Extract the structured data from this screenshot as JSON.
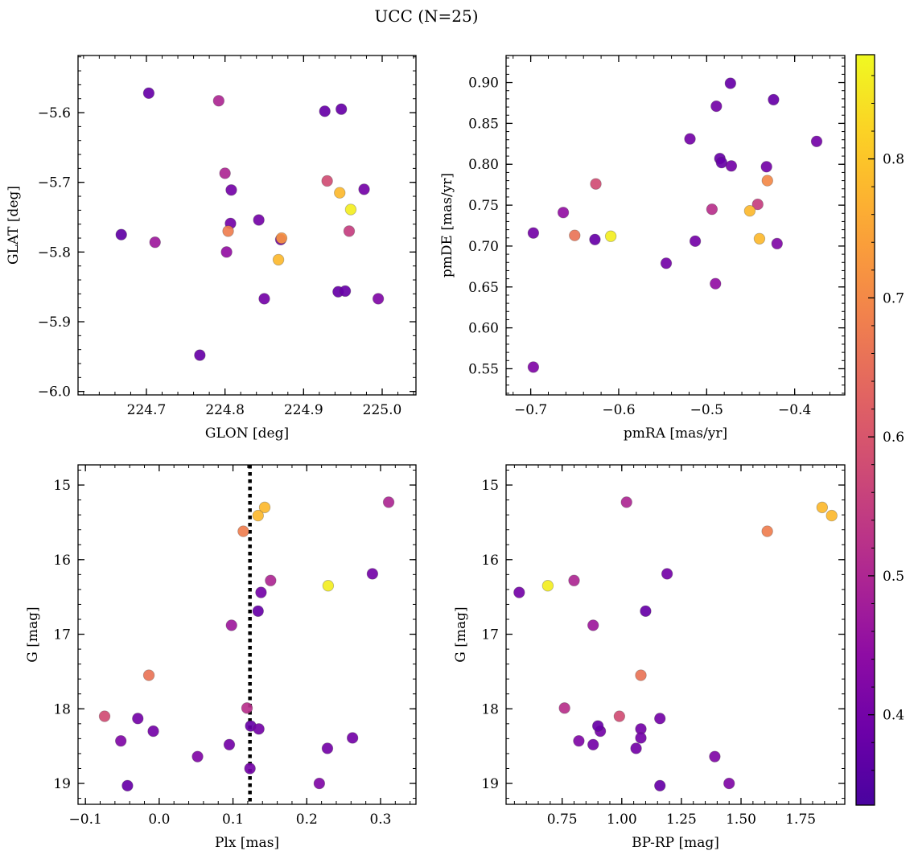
{
  "title": "UCC (N=25)",
  "colorbar": {
    "cmap": "plasma",
    "vmin": 0.335,
    "vmax": 0.875,
    "ticks": [
      0.4,
      0.5,
      0.6,
      0.7,
      0.8
    ]
  },
  "chart_data": [
    {
      "type": "scatter",
      "xlabel": "GLON [deg]",
      "ylabel": "GLAT [deg]",
      "xlim": [
        224.613,
        225.043
      ],
      "ylim": [
        -6.005,
        -5.518
      ],
      "invert_y": false,
      "xticks": [
        224.7,
        224.8,
        224.9,
        225.0
      ],
      "xticklabels": [
        "224.7",
        "224.8",
        "224.9",
        "225.0"
      ],
      "yticks": [
        -5.6,
        -5.7,
        -5.8,
        -5.9,
        -6.0
      ],
      "yticklabels": [
        "−5.6",
        "−5.7",
        "−5.8",
        "−5.9",
        "−6.0"
      ],
      "points": [
        {
          "x": 224.703,
          "y": -5.572,
          "c": 0.38
        },
        {
          "x": 224.792,
          "y": -5.583,
          "c": 0.5
        },
        {
          "x": 224.927,
          "y": -5.598,
          "c": 0.38
        },
        {
          "x": 224.948,
          "y": -5.595,
          "c": 0.38
        },
        {
          "x": 224.8,
          "y": -5.687,
          "c": 0.5
        },
        {
          "x": 224.808,
          "y": -5.711,
          "c": 0.4
        },
        {
          "x": 224.93,
          "y": -5.698,
          "c": 0.58
        },
        {
          "x": 224.946,
          "y": -5.715,
          "c": 0.78
        },
        {
          "x": 224.977,
          "y": -5.71,
          "c": 0.4
        },
        {
          "x": 224.96,
          "y": -5.739,
          "c": 0.86
        },
        {
          "x": 224.807,
          "y": -5.759,
          "c": 0.4
        },
        {
          "x": 224.843,
          "y": -5.754,
          "c": 0.4
        },
        {
          "x": 224.668,
          "y": -5.775,
          "c": 0.37
        },
        {
          "x": 224.711,
          "y": -5.786,
          "c": 0.47
        },
        {
          "x": 224.804,
          "y": -5.77,
          "c": 0.68
        },
        {
          "x": 224.871,
          "y": -5.782,
          "c": 0.4
        },
        {
          "x": 224.872,
          "y": -5.78,
          "c": 0.72
        },
        {
          "x": 224.958,
          "y": -5.77,
          "c": 0.55
        },
        {
          "x": 224.802,
          "y": -5.8,
          "c": 0.45
        },
        {
          "x": 224.868,
          "y": -5.811,
          "c": 0.78
        },
        {
          "x": 224.85,
          "y": -5.867,
          "c": 0.4
        },
        {
          "x": 224.944,
          "y": -5.857,
          "c": 0.38
        },
        {
          "x": 224.953,
          "y": -5.856,
          "c": 0.38
        },
        {
          "x": 224.995,
          "y": -5.867,
          "c": 0.42
        },
        {
          "x": 224.768,
          "y": -5.948,
          "c": 0.38
        }
      ]
    },
    {
      "type": "scatter",
      "xlabel": "pmRA [mas/yr]",
      "ylabel": "pmDE [mas/yr]",
      "xlim": [
        -0.728,
        -0.343
      ],
      "ylim": [
        0.518,
        0.933
      ],
      "invert_y": false,
      "xticks": [
        -0.7,
        -0.6,
        -0.5,
        -0.4
      ],
      "xticklabels": [
        "−0.7",
        "−0.6",
        "−0.5",
        "−0.4"
      ],
      "yticks": [
        0.55,
        0.6,
        0.65,
        0.7,
        0.75,
        0.8,
        0.85,
        0.9
      ],
      "yticklabels": [
        "0.55",
        "0.60",
        "0.65",
        "0.70",
        "0.75",
        "0.80",
        "0.85",
        "0.90"
      ],
      "points": [
        {
          "x": -0.473,
          "y": 0.899,
          "c": 0.38
        },
        {
          "x": -0.424,
          "y": 0.879,
          "c": 0.38
        },
        {
          "x": -0.489,
          "y": 0.871,
          "c": 0.4
        },
        {
          "x": -0.519,
          "y": 0.831,
          "c": 0.4
        },
        {
          "x": -0.375,
          "y": 0.828,
          "c": 0.4
        },
        {
          "x": -0.485,
          "y": 0.807,
          "c": 0.38
        },
        {
          "x": -0.483,
          "y": 0.802,
          "c": 0.38
        },
        {
          "x": -0.472,
          "y": 0.798,
          "c": 0.4
        },
        {
          "x": -0.432,
          "y": 0.797,
          "c": 0.4
        },
        {
          "x": -0.431,
          "y": 0.78,
          "c": 0.7
        },
        {
          "x": -0.626,
          "y": 0.776,
          "c": 0.58
        },
        {
          "x": -0.442,
          "y": 0.751,
          "c": 0.55
        },
        {
          "x": -0.494,
          "y": 0.745,
          "c": 0.52
        },
        {
          "x": -0.451,
          "y": 0.743,
          "c": 0.78
        },
        {
          "x": -0.663,
          "y": 0.741,
          "c": 0.45
        },
        {
          "x": -0.697,
          "y": 0.716,
          "c": 0.4
        },
        {
          "x": -0.65,
          "y": 0.713,
          "c": 0.66
        },
        {
          "x": -0.609,
          "y": 0.712,
          "c": 0.86
        },
        {
          "x": -0.44,
          "y": 0.709,
          "c": 0.78
        },
        {
          "x": -0.627,
          "y": 0.708,
          "c": 0.38
        },
        {
          "x": -0.513,
          "y": 0.706,
          "c": 0.4
        },
        {
          "x": -0.42,
          "y": 0.703,
          "c": 0.42
        },
        {
          "x": -0.546,
          "y": 0.679,
          "c": 0.4
        },
        {
          "x": -0.49,
          "y": 0.654,
          "c": 0.45
        },
        {
          "x": -0.697,
          "y": 0.552,
          "c": 0.42
        }
      ]
    },
    {
      "type": "scatter",
      "xlabel": "Plx [mas]",
      "ylabel": "G [mag]",
      "xlim": [
        -0.11,
        0.348
      ],
      "ylim": [
        14.73,
        19.28
      ],
      "invert_y": true,
      "vline": {
        "x": 0.123,
        "style": "dotted"
      },
      "xticks": [
        -0.1,
        0.0,
        0.1,
        0.2,
        0.3
      ],
      "xticklabels": [
        "−0.1",
        "0.0",
        "0.1",
        "0.2",
        "0.3"
      ],
      "yticks": [
        15,
        16,
        17,
        18,
        19
      ],
      "yticklabels": [
        "15",
        "16",
        "17",
        "18",
        "19"
      ],
      "points": [
        {
          "x": 0.311,
          "y": 15.23,
          "c": 0.5
        },
        {
          "x": 0.143,
          "y": 15.3,
          "c": 0.78
        },
        {
          "x": 0.134,
          "y": 15.41,
          "c": 0.78
        },
        {
          "x": 0.114,
          "y": 15.62,
          "c": 0.68
        },
        {
          "x": 0.289,
          "y": 16.19,
          "c": 0.4
        },
        {
          "x": 0.151,
          "y": 16.28,
          "c": 0.5
        },
        {
          "x": 0.229,
          "y": 16.35,
          "c": 0.86
        },
        {
          "x": 0.138,
          "y": 16.44,
          "c": 0.4
        },
        {
          "x": 0.134,
          "y": 16.69,
          "c": 0.38
        },
        {
          "x": 0.098,
          "y": 16.88,
          "c": 0.47
        },
        {
          "x": -0.014,
          "y": 17.55,
          "c": 0.66
        },
        {
          "x": 0.119,
          "y": 17.99,
          "c": 0.52
        },
        {
          "x": -0.074,
          "y": 18.1,
          "c": 0.58
        },
        {
          "x": -0.029,
          "y": 18.13,
          "c": 0.4
        },
        {
          "x": -0.008,
          "y": 18.3,
          "c": 0.4
        },
        {
          "x": 0.124,
          "y": 18.23,
          "c": 0.38
        },
        {
          "x": 0.135,
          "y": 18.27,
          "c": 0.4
        },
        {
          "x": 0.262,
          "y": 18.39,
          "c": 0.4
        },
        {
          "x": -0.052,
          "y": 18.43,
          "c": 0.42
        },
        {
          "x": 0.095,
          "y": 18.48,
          "c": 0.4
        },
        {
          "x": 0.228,
          "y": 18.53,
          "c": 0.4
        },
        {
          "x": 0.052,
          "y": 18.64,
          "c": 0.42
        },
        {
          "x": 0.123,
          "y": 18.8,
          "c": 0.4
        },
        {
          "x": 0.217,
          "y": 19.0,
          "c": 0.42
        },
        {
          "x": -0.043,
          "y": 19.03,
          "c": 0.38
        }
      ]
    },
    {
      "type": "scatter",
      "xlabel": "BP-RP [mag]",
      "ylabel": "G [mag]",
      "xlim": [
        0.515,
        1.935
      ],
      "ylim": [
        14.73,
        19.28
      ],
      "invert_y": true,
      "xticks": [
        0.75,
        1.0,
        1.25,
        1.5,
        1.75
      ],
      "xticklabels": [
        "0.75",
        "1.00",
        "1.25",
        "1.50",
        "1.75"
      ],
      "yticks": [
        15,
        16,
        17,
        18,
        19
      ],
      "yticklabels": [
        "15",
        "16",
        "17",
        "18",
        "19"
      ],
      "points": [
        {
          "x": 1.02,
          "y": 15.23,
          "c": 0.5
        },
        {
          "x": 1.84,
          "y": 15.3,
          "c": 0.78
        },
        {
          "x": 1.88,
          "y": 15.41,
          "c": 0.78
        },
        {
          "x": 1.61,
          "y": 15.62,
          "c": 0.68
        },
        {
          "x": 1.19,
          "y": 16.19,
          "c": 0.4
        },
        {
          "x": 0.8,
          "y": 16.28,
          "c": 0.5
        },
        {
          "x": 0.69,
          "y": 16.35,
          "c": 0.86
        },
        {
          "x": 0.57,
          "y": 16.44,
          "c": 0.4
        },
        {
          "x": 1.1,
          "y": 16.69,
          "c": 0.38
        },
        {
          "x": 0.88,
          "y": 16.88,
          "c": 0.47
        },
        {
          "x": 1.08,
          "y": 17.55,
          "c": 0.66
        },
        {
          "x": 0.76,
          "y": 17.99,
          "c": 0.52
        },
        {
          "x": 0.99,
          "y": 18.1,
          "c": 0.58
        },
        {
          "x": 1.16,
          "y": 18.13,
          "c": 0.4
        },
        {
          "x": 0.91,
          "y": 18.3,
          "c": 0.4
        },
        {
          "x": 0.9,
          "y": 18.23,
          "c": 0.38
        },
        {
          "x": 1.08,
          "y": 18.27,
          "c": 0.4
        },
        {
          "x": 1.08,
          "y": 18.39,
          "c": 0.4
        },
        {
          "x": 0.82,
          "y": 18.43,
          "c": 0.42
        },
        {
          "x": 0.88,
          "y": 18.48,
          "c": 0.4
        },
        {
          "x": 1.06,
          "y": 18.53,
          "c": 0.4
        },
        {
          "x": 1.39,
          "y": 18.64,
          "c": 0.42
        },
        {
          "x": 1.45,
          "y": 19.0,
          "c": 0.42
        },
        {
          "x": 1.16,
          "y": 19.03,
          "c": 0.38
        }
      ]
    }
  ]
}
